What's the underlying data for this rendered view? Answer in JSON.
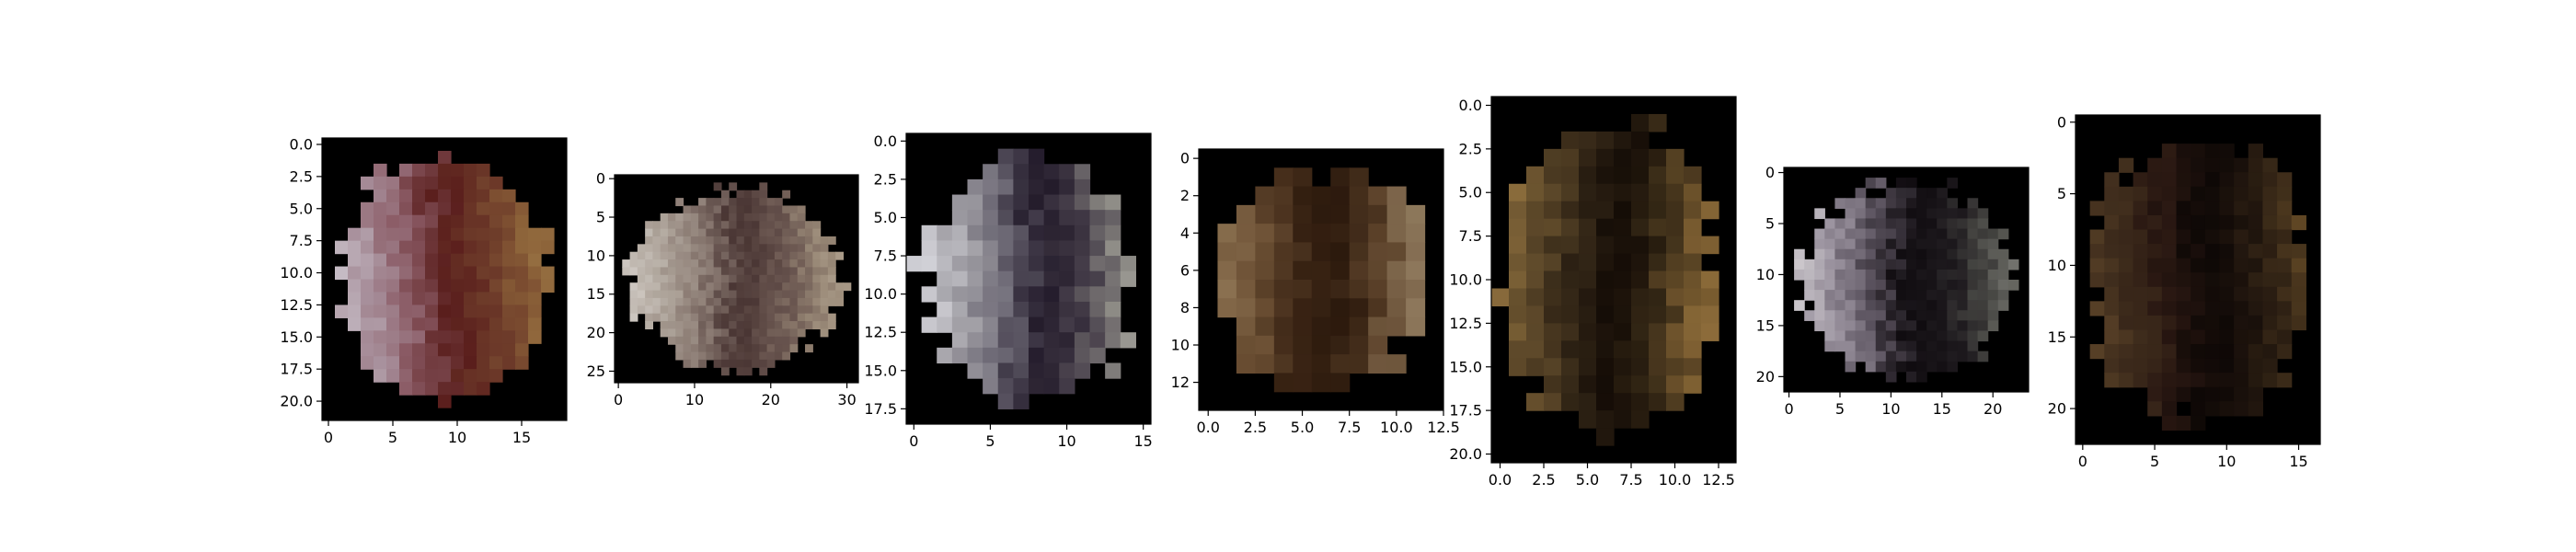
{
  "chart_data": [
    {
      "type": "heatmap",
      "title": "",
      "xlabel": "",
      "ylabel": "",
      "xlim": [
        -0.5,
        18.5
      ],
      "ylim": [
        21.5,
        -0.5
      ],
      "xticks": [
        0,
        5,
        10,
        15
      ],
      "xtick_labels": [
        "0",
        "5",
        "10",
        "15"
      ],
      "yticks": [
        0,
        2.5,
        5,
        7.5,
        10,
        12.5,
        15,
        17.5,
        20
      ],
      "ytick_labels": [
        "0.0",
        "2.5",
        "5.0",
        "7.5",
        "10.0",
        "12.5",
        "15.0",
        "17.5",
        "20.0"
      ],
      "palette": [
        "#c8c0c8",
        "#a8909c",
        "#8a5a64",
        "#5a1e1c",
        "#6e3c2a",
        "#8a6038",
        "#a07c48"
      ],
      "background_color": "#000000"
    },
    {
      "type": "heatmap",
      "title": "",
      "xlabel": "",
      "ylabel": "",
      "xlim": [
        -0.5,
        31.5
      ],
      "ylim": [
        26.5,
        -0.5
      ],
      "xticks": [
        0,
        10,
        20,
        30
      ],
      "xtick_labels": [
        "0",
        "10",
        "20",
        "30"
      ],
      "yticks": [
        0,
        5,
        10,
        15,
        20,
        25
      ],
      "ytick_labels": [
        "0",
        "5",
        "10",
        "15",
        "20",
        "25"
      ],
      "palette": [
        "#d0cac4",
        "#aea49a",
        "#8a7a72",
        "#4a3634",
        "#6a5650",
        "#9a8a78",
        "#b8aa98"
      ],
      "background_color": "#000000"
    },
    {
      "type": "heatmap",
      "title": "",
      "xlabel": "",
      "ylabel": "",
      "xlim": [
        -0.5,
        15.5
      ],
      "ylim": [
        18.5,
        -0.5
      ],
      "xticks": [
        0,
        5,
        10,
        15
      ],
      "xtick_labels": [
        "0",
        "5",
        "10",
        "15"
      ],
      "yticks": [
        0,
        2.5,
        5,
        7.5,
        10,
        12.5,
        15,
        17.5
      ],
      "ytick_labels": [
        "0.0",
        "2.5",
        "5.0",
        "7.5",
        "10.0",
        "12.5",
        "15.0",
        "17.5"
      ],
      "palette": [
        "#d6d6dc",
        "#a4a2a8",
        "#6e6a76",
        "#201828",
        "#443c48",
        "#8e8c86",
        "#b4b2aa"
      ],
      "background_color": "#000000"
    },
    {
      "type": "heatmap",
      "title": "",
      "xlabel": "",
      "ylabel": "",
      "xlim": [
        -0.5,
        12.5
      ],
      "ylim": [
        13.5,
        -0.5
      ],
      "xticks": [
        0,
        2.5,
        5,
        7.5,
        10,
        12.5
      ],
      "xtick_labels": [
        "0.0",
        "2.5",
        "5.0",
        "7.5",
        "10.0",
        "12.5"
      ],
      "yticks": [
        0,
        2,
        4,
        6,
        8,
        10,
        12
      ],
      "ytick_labels": [
        "0",
        "2",
        "4",
        "6",
        "8",
        "10",
        "12"
      ],
      "palette": [
        "#8a7050",
        "#6c5034",
        "#3a2414",
        "#2a180c",
        "#5a4028",
        "#8a7458",
        "#9a8668"
      ],
      "background_color": "#000000"
    },
    {
      "type": "heatmap",
      "title": "",
      "xlabel": "",
      "ylabel": "",
      "xlim": [
        -0.5,
        13.5
      ],
      "ylim": [
        20.5,
        -0.5
      ],
      "xticks": [
        0,
        2.5,
        5,
        7.5,
        10,
        12.5
      ],
      "xtick_labels": [
        "0.0",
        "2.5",
        "5.0",
        "7.5",
        "10.0",
        "12.5"
      ],
      "yticks": [
        0,
        2.5,
        5,
        7.5,
        10,
        12.5,
        15,
        17.5,
        20
      ],
      "ytick_labels": [
        "0.0",
        "2.5",
        "5.0",
        "7.5",
        "10.0",
        "12.5",
        "15.0",
        "17.5",
        "20.0"
      ],
      "palette": [
        "#8a6c3c",
        "#5a4628",
        "#2e2214",
        "#140c06",
        "#3a2c18",
        "#7a5c30",
        "#a07c44"
      ],
      "background_color": "#000000"
    },
    {
      "type": "heatmap",
      "title": "",
      "xlabel": "",
      "ylabel": "",
      "xlim": [
        -0.5,
        23.5
      ],
      "ylim": [
        21.5,
        -0.5
      ],
      "xticks": [
        0,
        5,
        10,
        15,
        20
      ],
      "xtick_labels": [
        "0",
        "5",
        "10",
        "15",
        "20"
      ],
      "yticks": [
        0,
        5,
        10,
        15,
        20
      ],
      "ytick_labels": [
        "0",
        "5",
        "10",
        "15",
        "20"
      ],
      "palette": [
        "#d0ccd0",
        "#9c94a0",
        "#5c5460",
        "#100c10",
        "#1e1a1e",
        "#4a4a46",
        "#7a7a74"
      ],
      "background_color": "#000000"
    },
    {
      "type": "heatmap",
      "title": "",
      "xlabel": "",
      "ylabel": "",
      "xlim": [
        -0.5,
        16.5
      ],
      "ylim": [
        22.5,
        -0.5
      ],
      "xticks": [
        0,
        5,
        10,
        15
      ],
      "xtick_labels": [
        "0",
        "5",
        "10",
        "15"
      ],
      "yticks": [
        0,
        5,
        10,
        15,
        20
      ],
      "ytick_labels": [
        "0",
        "5",
        "10",
        "15",
        "20"
      ],
      "palette": [
        "#5a4228",
        "#3e2c1c",
        "#2a1812",
        "#0e0806",
        "#1c120c",
        "#3a2a18",
        "#6a4e28"
      ],
      "background_color": "#000000"
    }
  ]
}
